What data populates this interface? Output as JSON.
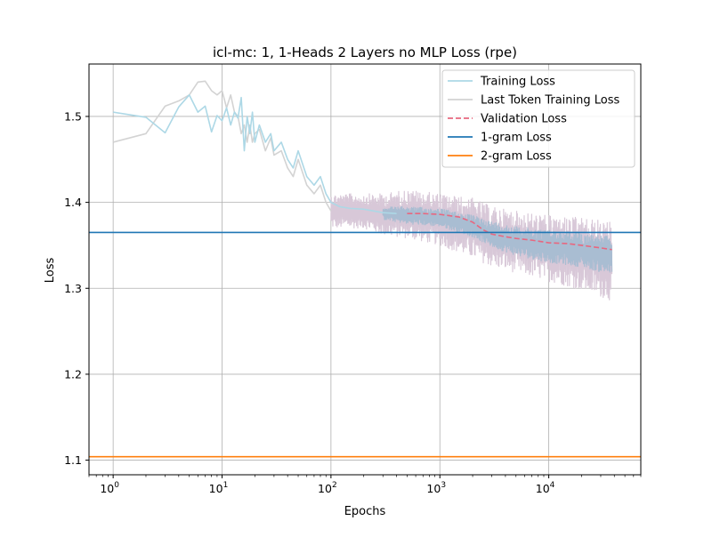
{
  "chart_data": {
    "type": "line",
    "title": "icl-mc: 1, 1-Heads 2 Layers no MLP  Loss (rpe)",
    "xlabel": "Epochs",
    "ylabel": "Loss",
    "xscale": "log",
    "xlim": [
      0.6,
      70000
    ],
    "ylim": [
      1.083,
      1.561
    ],
    "grid": true,
    "legend_position": "top-right",
    "x_ticks": [
      {
        "value": 1,
        "base": "10",
        "exp": "0"
      },
      {
        "value": 10,
        "base": "10",
        "exp": "1"
      },
      {
        "value": 100,
        "base": "10",
        "exp": "2"
      },
      {
        "value": 1000,
        "base": "10",
        "exp": "3"
      },
      {
        "value": 10000,
        "base": "10",
        "exp": "4"
      }
    ],
    "y_ticks": [
      {
        "value": 1.1,
        "label": "1.1"
      },
      {
        "value": 1.2,
        "label": "1.2"
      },
      {
        "value": 1.3,
        "label": "1.3"
      },
      {
        "value": 1.4,
        "label": "1.4"
      },
      {
        "value": 1.5,
        "label": "1.5"
      }
    ],
    "colors": {
      "training": "#add8e6",
      "last_token": "#d3d3d3",
      "validation": "#e8677f",
      "unigram": "#1f77b4",
      "bigram": "#ff7f0e",
      "band_last_token": "#d8c8d8",
      "band_training": "#a9bdd2"
    },
    "series": [
      {
        "name": "Training Loss",
        "style": "solid",
        "x": [
          1,
          2,
          3,
          4,
          5,
          6,
          7,
          8,
          9,
          10,
          11,
          12,
          13,
          14,
          15,
          16,
          17,
          18,
          19,
          20,
          22,
          25,
          28,
          30,
          35,
          40,
          45,
          50,
          60,
          70,
          80,
          90,
          100,
          120,
          150,
          200,
          300,
          400
        ],
        "y": [
          1.505,
          1.499,
          1.481,
          1.511,
          1.525,
          1.505,
          1.512,
          1.482,
          1.501,
          1.495,
          1.51,
          1.49,
          1.505,
          1.498,
          1.522,
          1.46,
          1.5,
          1.48,
          1.505,
          1.47,
          1.49,
          1.47,
          1.48,
          1.46,
          1.47,
          1.45,
          1.44,
          1.46,
          1.43,
          1.42,
          1.43,
          1.41,
          1.4,
          1.395,
          1.393,
          1.392,
          1.388,
          1.387
        ]
      },
      {
        "name": "Last Token Training Loss",
        "style": "solid",
        "x": [
          1,
          2,
          3,
          4,
          5,
          6,
          7,
          8,
          9,
          10,
          11,
          12,
          13,
          14,
          15,
          16,
          17,
          18,
          19,
          20,
          22,
          25,
          28,
          30,
          35,
          40,
          45,
          50,
          60,
          70,
          80,
          90,
          100
        ],
        "y": [
          1.47,
          1.48,
          1.512,
          1.518,
          1.525,
          1.54,
          1.541,
          1.53,
          1.525,
          1.53,
          1.51,
          1.525,
          1.505,
          1.5,
          1.48,
          1.49,
          1.47,
          1.49,
          1.47,
          1.48,
          1.485,
          1.46,
          1.475,
          1.455,
          1.46,
          1.44,
          1.43,
          1.45,
          1.42,
          1.41,
          1.42,
          1.4,
          1.39
        ]
      },
      {
        "name": "Validation Loss",
        "style": "dashed",
        "x": [
          500,
          700,
          1000,
          1500,
          2000,
          2500,
          3000,
          4000,
          5000,
          7000,
          10000,
          15000,
          20000,
          30000,
          38000
        ],
        "y": [
          1.387,
          1.387,
          1.386,
          1.383,
          1.377,
          1.368,
          1.363,
          1.36,
          1.358,
          1.356,
          1.353,
          1.352,
          1.35,
          1.347,
          1.345
        ]
      },
      {
        "name": "1-gram Loss",
        "style": "hline",
        "y": 1.365
      },
      {
        "name": "2-gram Loss",
        "style": "hline",
        "y": 1.104
      }
    ],
    "bands": [
      {
        "series": "Last Token Training Loss",
        "x": [
          100,
          200,
          300,
          500,
          1000,
          2000,
          3000,
          5000,
          10000,
          20000,
          38000
        ],
        "lower": [
          1.37,
          1.37,
          1.362,
          1.358,
          1.35,
          1.335,
          1.325,
          1.318,
          1.308,
          1.298,
          1.285
        ],
        "upper": [
          1.41,
          1.41,
          1.41,
          1.415,
          1.41,
          1.405,
          1.395,
          1.39,
          1.385,
          1.382,
          1.378
        ]
      },
      {
        "series": "Training Loss",
        "x": [
          300,
          500,
          1000,
          2000,
          3000,
          5000,
          10000,
          20000,
          38000
        ],
        "lower": [
          1.38,
          1.375,
          1.372,
          1.36,
          1.348,
          1.338,
          1.33,
          1.325,
          1.315
        ],
        "upper": [
          1.395,
          1.395,
          1.393,
          1.385,
          1.378,
          1.372,
          1.368,
          1.365,
          1.36
        ]
      }
    ]
  }
}
